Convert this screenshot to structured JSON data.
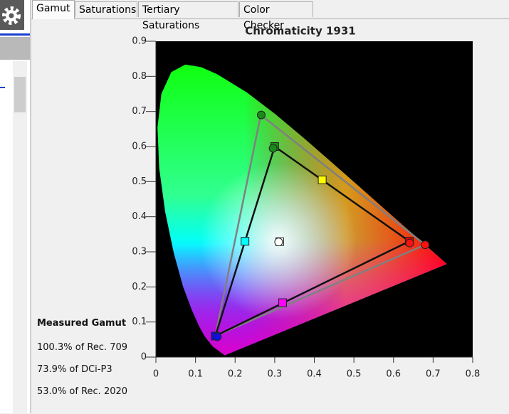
{
  "tabs": [
    "Gamut",
    "Saturations",
    "Tertiary Saturations",
    "Color Checker"
  ],
  "gamut": {
    "title": "Measured Gamut",
    "lines": [
      "100.3% of Rec. 709",
      "73.9% of DCi-P3",
      "53.0% of Rec. 2020"
    ]
  },
  "chart_data": {
    "type": "scatter",
    "title": "Chromaticity 1931",
    "xlim": [
      0,
      0.8
    ],
    "ylim": [
      0,
      0.9
    ],
    "xticks": [
      0,
      0.1,
      0.2,
      0.3,
      0.4,
      0.5,
      0.6,
      0.7,
      0.8
    ],
    "yticks": [
      0,
      0.1,
      0.2,
      0.3,
      0.4,
      0.5,
      0.6,
      0.7,
      0.8,
      0.9
    ],
    "outlines": [
      {
        "color": "#808080",
        "x": [
          0.68,
          0.265,
          0.15
        ],
        "values": [
          0.32,
          0.69,
          0.06
        ]
      },
      {
        "color": "#111111",
        "x": [
          0.64,
          0.3,
          0.15
        ],
        "values": [
          0.33,
          0.6,
          0.06
        ]
      }
    ],
    "series": [
      {
        "marker": "square",
        "x": [
          0.64,
          0.3,
          0.15,
          0.42,
          0.225,
          0.32,
          0.3127
        ],
        "values": [
          0.33,
          0.6,
          0.06,
          0.505,
          0.33,
          0.155,
          0.329
        ],
        "colors": [
          "#e00000",
          "#1a8a1a",
          "#1010e0",
          "#ffff00",
          "#00ffff",
          "#ff00ff",
          "#ffffff"
        ]
      },
      {
        "marker": "circle",
        "x": [
          0.641,
          0.296,
          0.155,
          0.31,
          0.68,
          0.266
        ],
        "values": [
          0.325,
          0.595,
          0.058,
          0.328,
          0.32,
          0.69
        ],
        "colors": [
          "#ff1010",
          "#1a8a1a",
          "#1010e0",
          "#ffffff",
          "#ff1010",
          "#1a8a1a"
        ]
      }
    ]
  }
}
